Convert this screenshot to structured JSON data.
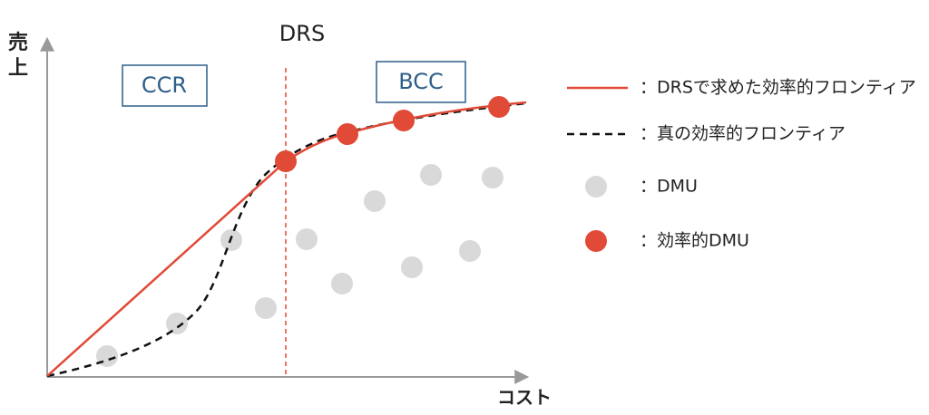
{
  "axes": {
    "y_label_top": "売",
    "y_label_bottom": "上",
    "x_label": "コスト"
  },
  "annotations": {
    "boundary": "DRS",
    "left_region": "CCR",
    "right_region": "BCC"
  },
  "legend": [
    "：DRSで求めた効率的フロンティア",
    "：真の効率的フロンティア",
    "：DMU",
    "：効率的DMU"
  ]
}
